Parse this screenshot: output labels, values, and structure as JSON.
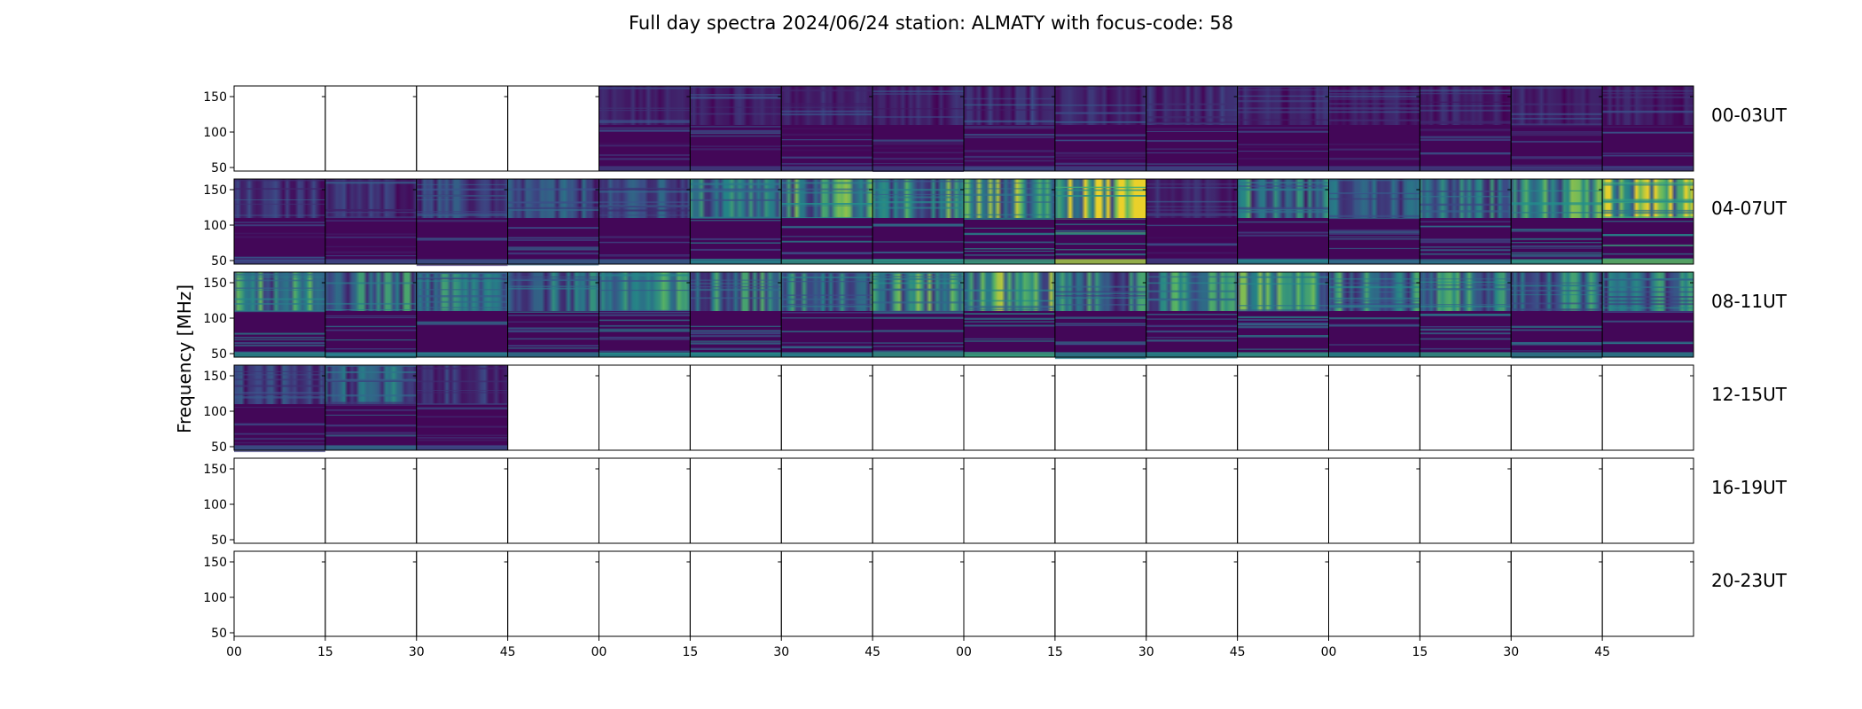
{
  "chart_data": {
    "type": "heatmap",
    "title": "Full day spectra 2024/06/24 station: ALMATY with focus-code: 58",
    "ylabel": "Frequency [MHz]",
    "xlabel": "",
    "ylim": [
      45,
      165
    ],
    "y_ticks": [
      50,
      100,
      150
    ],
    "x_tick_labels": [
      "00",
      "15",
      "30",
      "45",
      "00",
      "15",
      "30",
      "45",
      "00",
      "15",
      "30",
      "45",
      "00",
      "15",
      "30",
      "45"
    ],
    "panels_per_row": 16,
    "panel_minutes": 15,
    "colormap": [
      "#440154",
      "#3b528b",
      "#21918c",
      "#5ec962",
      "#fde725"
    ],
    "rows": [
      {
        "label": "00-03UT",
        "panels": [
          0,
          0,
          0,
          0,
          1,
          1,
          1,
          1,
          1,
          1,
          1,
          1,
          1,
          1,
          1,
          1
        ],
        "intensity": [
          0,
          0,
          0,
          0,
          0.1,
          0.1,
          0.1,
          0.1,
          0.15,
          0.12,
          0.12,
          0.1,
          0.1,
          0.1,
          0.1,
          0.1
        ]
      },
      {
        "label": "04-07UT",
        "panels": [
          1,
          1,
          1,
          1,
          1,
          1,
          1,
          1,
          1,
          1,
          1,
          1,
          1,
          1,
          1,
          1
        ],
        "intensity": [
          0.15,
          0.15,
          0.2,
          0.25,
          0.25,
          0.4,
          0.5,
          0.5,
          0.55,
          0.85,
          0.1,
          0.4,
          0.3,
          0.35,
          0.5,
          0.7
        ]
      },
      {
        "label": "08-11UT",
        "panels": [
          1,
          1,
          1,
          1,
          1,
          1,
          1,
          1,
          1,
          1,
          1,
          1,
          1,
          1,
          1,
          1
        ],
        "intensity": [
          0.45,
          0.4,
          0.4,
          0.35,
          0.45,
          0.45,
          0.4,
          0.5,
          0.55,
          0.4,
          0.45,
          0.5,
          0.45,
          0.5,
          0.4,
          0.4
        ]
      },
      {
        "label": "12-15UT",
        "panels": [
          1,
          1,
          1,
          0,
          0,
          0,
          0,
          0,
          0,
          0,
          0,
          0,
          0,
          0,
          0,
          0
        ],
        "intensity": [
          0.2,
          0.3,
          0.15,
          0,
          0,
          0,
          0,
          0,
          0,
          0,
          0,
          0,
          0,
          0,
          0,
          0
        ]
      },
      {
        "label": "16-19UT",
        "panels": [
          0,
          0,
          0,
          0,
          0,
          0,
          0,
          0,
          0,
          0,
          0,
          0,
          0,
          0,
          0,
          0
        ],
        "intensity": [
          0,
          0,
          0,
          0,
          0,
          0,
          0,
          0,
          0,
          0,
          0,
          0,
          0,
          0,
          0,
          0
        ]
      },
      {
        "label": "20-23UT",
        "panels": [
          0,
          0,
          0,
          0,
          0,
          0,
          0,
          0,
          0,
          0,
          0,
          0,
          0,
          0,
          0,
          0
        ],
        "intensity": [
          0,
          0,
          0,
          0,
          0,
          0,
          0,
          0,
          0,
          0,
          0,
          0,
          0,
          0,
          0,
          0
        ]
      }
    ]
  }
}
